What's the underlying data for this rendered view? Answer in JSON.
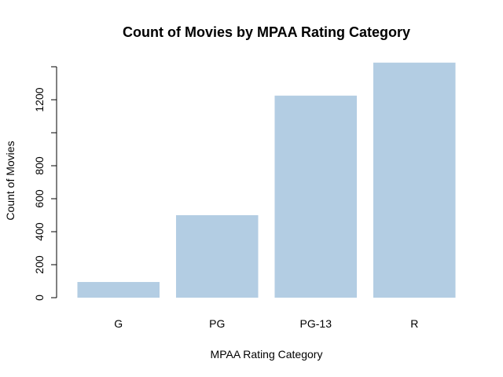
{
  "chart_data": {
    "type": "bar",
    "title": "Count of Movies by MPAA Rating Category",
    "xlabel": "MPAA Rating Category",
    "ylabel": "Count of Movies",
    "categories": [
      "G",
      "PG",
      "PG-13",
      "R"
    ],
    "values": [
      95,
      500,
      1225,
      1425
    ],
    "ylim": [
      0,
      1400
    ],
    "yticks": [
      0,
      200,
      400,
      600,
      800,
      1000,
      1200,
      1400
    ],
    "ytick_labels": [
      "0",
      "200",
      "400",
      "600",
      "800",
      "",
      "1200",
      ""
    ],
    "bar_color": "#b3cde3",
    "grid": false,
    "legend": "none"
  }
}
